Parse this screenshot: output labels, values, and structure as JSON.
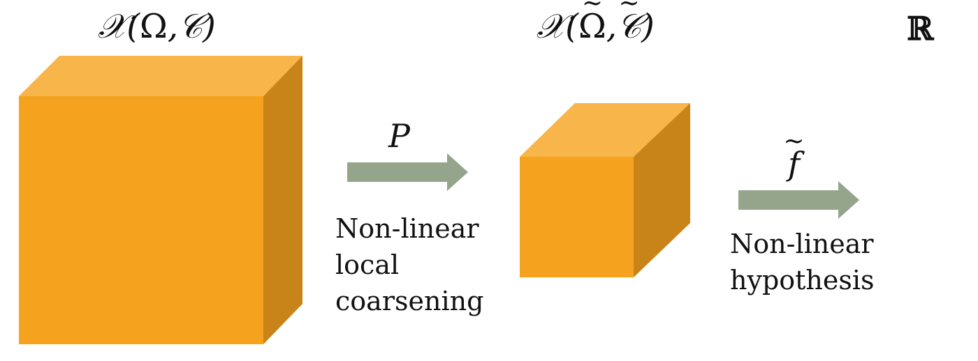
{
  "diagram": {
    "input_space": {
      "prefix": "𝒳(",
      "omega": "Ω",
      "comma": ",",
      "c": "𝒞",
      "suffix": ")"
    },
    "coarse_space": {
      "prefix": "𝒳(",
      "omega": "Ω",
      "comma": ",",
      "c": "𝒞",
      "suffix": ")",
      "tilde": "~"
    },
    "output_space": "ℝ",
    "map_p": {
      "symbol": "P",
      "caption": [
        "Non-linear",
        "local",
        "coarsening"
      ]
    },
    "map_f": {
      "symbol": "f",
      "tilde": "~",
      "caption": [
        "Non-linear",
        "hypothesis"
      ]
    }
  },
  "colors": {
    "cube_front": "#f5a31f",
    "cube_top": "#f7b54a",
    "cube_side": "#c98419",
    "arrow": "#95a58c"
  }
}
